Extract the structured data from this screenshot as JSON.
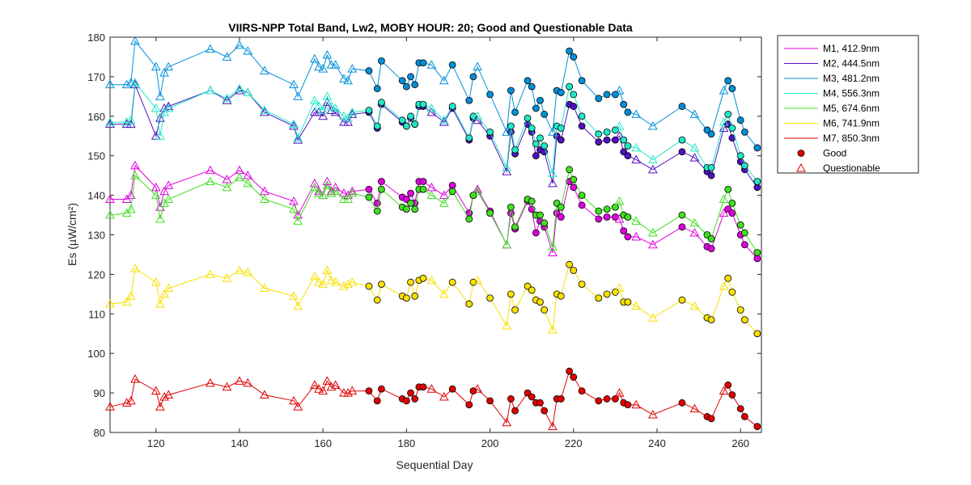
{
  "chart_data": {
    "type": "line",
    "title": "VIIRS-NPP Total Band,  Lw2, MOBY HOUR: 20;  Good and Questionable Data",
    "xlabel": "Sequential Day",
    "ylabel": "Es (µW/cm²)",
    "xlim": [
      109,
      265
    ],
    "ylim": [
      80,
      180
    ],
    "xticks": [
      "120",
      "140",
      "160",
      "180",
      "200",
      "220",
      "240",
      "260"
    ],
    "yticks": [
      "80",
      "90",
      "100",
      "110",
      "120",
      "130",
      "140",
      "150",
      "160",
      "170",
      "180"
    ],
    "grid": false,
    "legend_position": "outside-top-right",
    "markers": {
      "good_label": "Good",
      "questionable_label": "Questionable"
    },
    "x": [
      109,
      113,
      114,
      115,
      120,
      121,
      122,
      123,
      133,
      137,
      140,
      142,
      146,
      153,
      154,
      158,
      159,
      160,
      161,
      162,
      163,
      165,
      166,
      167,
      171,
      173,
      174,
      179,
      180,
      181,
      182,
      183,
      184,
      186,
      189,
      191,
      195,
      196,
      197,
      200,
      204,
      205,
      206,
      209,
      210,
      211,
      212,
      213,
      215,
      216,
      217,
      219,
      220,
      222,
      226,
      228,
      230,
      231,
      232,
      233,
      235,
      239,
      246,
      249,
      252,
      253,
      256,
      257,
      258,
      260,
      261,
      264
    ],
    "quality": [
      "Q",
      "Q",
      "Q",
      "Q",
      "Q",
      "Q",
      "Q",
      "Q",
      "Q",
      "Q",
      "Q",
      "Q",
      "Q",
      "Q",
      "Q",
      "Q",
      "Q",
      "Q",
      "Q",
      "Q",
      "Q",
      "Q",
      "Q",
      "Q",
      "G",
      "G",
      "G",
      "G",
      "G",
      "G",
      "G",
      "G",
      "G",
      "Q",
      "Q",
      "G",
      "G",
      "G",
      "Q",
      "G",
      "Q",
      "G",
      "G",
      "G",
      "G",
      "G",
      "G",
      "G",
      "Q",
      "G",
      "G",
      "G",
      "G",
      "G",
      "G",
      "G",
      "G",
      "Q",
      "G",
      "G",
      "Q",
      "Q",
      "G",
      "Q",
      "G",
      "G",
      "Q",
      "G",
      "G",
      "G",
      "G",
      "G"
    ],
    "series": [
      {
        "name": "M1, 412.9nm",
        "color": "#e000e0",
        "values": [
          139,
          139,
          140,
          147.5,
          142,
          137,
          141,
          142.5,
          146.3,
          144,
          146.3,
          145,
          141,
          138.5,
          135,
          143,
          141,
          140,
          143.5,
          141,
          142,
          140.5,
          140,
          141,
          141.5,
          138,
          143.5,
          139.5,
          139,
          140.5,
          138,
          143.5,
          143.5,
          142,
          140,
          142.5,
          135.5,
          140,
          141.5,
          136,
          127.5,
          135.5,
          131.5,
          138.5,
          136.5,
          130.5,
          133.5,
          132,
          125.5,
          135.5,
          134.5,
          143.5,
          142,
          137.5,
          134,
          134.5,
          134.5,
          134,
          131,
          129.5,
          129.5,
          127.5,
          132,
          130.5,
          127,
          126.5,
          135.5,
          136.5,
          135.5,
          130,
          127.5,
          124
        ]
      },
      {
        "name": "M2, 444.5nm",
        "color": "#5010c0",
        "values": [
          158,
          158,
          158,
          168,
          155,
          159.5,
          162,
          162.5,
          166.5,
          164,
          166.5,
          166,
          161,
          157.5,
          154,
          161,
          161,
          160,
          163.5,
          161.5,
          161,
          158.5,
          158.5,
          160.5,
          161,
          157,
          163,
          158.5,
          157.5,
          159.5,
          158,
          162.5,
          162.5,
          161,
          158.5,
          162,
          154,
          159.5,
          159,
          155,
          146,
          156,
          150.5,
          158,
          156,
          150,
          151.5,
          151,
          143,
          155,
          154,
          163,
          162.5,
          157.5,
          153.5,
          154,
          154,
          155,
          151,
          150,
          149,
          146.5,
          151,
          149.5,
          146,
          145,
          157,
          158,
          154.5,
          148.5,
          146.5,
          142
        ]
      },
      {
        "name": "M3, 481.2nm",
        "color": "#0090d8",
        "values": [
          168,
          168,
          168.5,
          179,
          172.5,
          165,
          171,
          172.5,
          177,
          175,
          178,
          176.5,
          171.5,
          168,
          165,
          174.5,
          172.5,
          172,
          175.5,
          173,
          173,
          169.5,
          169,
          172,
          171.5,
          167,
          174,
          169,
          167.5,
          170,
          168,
          173.5,
          173.5,
          173,
          169,
          173,
          164,
          170,
          172.5,
          165.5,
          156,
          166.5,
          161,
          169,
          167.5,
          162,
          164,
          160.5,
          156,
          166.5,
          166,
          176.5,
          175,
          169,
          164.5,
          165.5,
          165.5,
          166.5,
          163,
          161,
          160.5,
          157.5,
          162.5,
          160.5,
          156.5,
          155.5,
          166.5,
          169,
          167,
          159,
          156,
          152
        ]
      },
      {
        "name": "M4, 556.3nm",
        "color": "#20e8c8",
        "values": [
          158.5,
          158.5,
          159,
          168.5,
          162,
          155,
          161,
          162,
          166.5,
          164.5,
          167,
          166,
          161.5,
          158,
          154.5,
          164,
          162.5,
          161.5,
          165,
          162.5,
          162,
          160,
          159.5,
          161,
          161.5,
          157.5,
          163.5,
          159,
          157.5,
          160,
          158,
          163,
          163,
          162,
          159,
          162.5,
          154.5,
          160,
          160,
          156,
          147,
          157.5,
          151.5,
          159.5,
          157,
          153,
          154.5,
          152.5,
          145.5,
          157.5,
          157,
          167.5,
          165.5,
          160,
          155.5,
          156,
          156.5,
          157.5,
          154,
          152.5,
          152,
          149,
          154,
          152,
          147,
          147,
          158.5,
          160.5,
          157,
          150,
          147.5,
          143.5
        ]
      },
      {
        "name": "M5, 674.6nm",
        "color": "#40e020",
        "values": [
          135,
          135.5,
          136.5,
          145,
          140,
          134,
          138,
          139,
          143.5,
          142,
          144.5,
          143,
          139,
          136.5,
          133.5,
          142,
          140.5,
          140,
          142.5,
          140.5,
          141,
          139,
          139,
          140.5,
          139.5,
          136,
          141.5,
          137,
          136.5,
          138,
          136.5,
          141.5,
          141.5,
          140,
          138,
          141,
          134,
          140,
          141,
          135.5,
          127.5,
          137,
          132,
          139,
          138.5,
          135,
          135,
          133,
          127,
          138,
          137,
          146.5,
          144,
          140,
          136,
          136.5,
          137,
          138.5,
          135,
          134.5,
          133.5,
          130.5,
          135,
          133,
          130,
          129,
          139,
          141.5,
          138,
          132.5,
          130.5,
          125.5
        ]
      },
      {
        "name": "M6, 741.9nm",
        "color": "#f8e000",
        "values": [
          112.5,
          113,
          114.5,
          121.5,
          118,
          112.5,
          115,
          116.5,
          120,
          119,
          121,
          120.5,
          116.5,
          114.5,
          112,
          119.5,
          118,
          117.5,
          121,
          118.5,
          118,
          117,
          117.5,
          118,
          117,
          113.5,
          117.5,
          114.5,
          114,
          118,
          114.5,
          118.5,
          119,
          118.5,
          115,
          118,
          112.5,
          118,
          118.5,
          114,
          107,
          115,
          111,
          117,
          116,
          113.5,
          113,
          111,
          106,
          115,
          114.5,
          122.5,
          121,
          117.5,
          114,
          115,
          115.5,
          116.5,
          113,
          113,
          112,
          109,
          113.5,
          112,
          109,
          108.5,
          117,
          119,
          115.5,
          111,
          108.5,
          105
        ]
      },
      {
        "name": "M7, 850.3nm",
        "color": "#e00000",
        "values": [
          86.5,
          87.5,
          88,
          93.5,
          90.5,
          86.5,
          89,
          89.5,
          92.5,
          91.5,
          93,
          92.5,
          89.5,
          88,
          86.5,
          92,
          91,
          90.5,
          93,
          91.5,
          92,
          90,
          90,
          90.5,
          90.5,
          88,
          91,
          88.5,
          88,
          90,
          88.5,
          91.5,
          91.5,
          91,
          89,
          91,
          87,
          90.5,
          91,
          88,
          82.5,
          88.5,
          85.5,
          90,
          89,
          87.5,
          87.5,
          85.5,
          81.5,
          88.5,
          88.5,
          95.5,
          94,
          90.5,
          88,
          88.5,
          88.5,
          90,
          87.5,
          87,
          87,
          84.5,
          87.5,
          86,
          84,
          83.5,
          90.5,
          92,
          89.5,
          86,
          84,
          81.5
        ]
      }
    ]
  }
}
